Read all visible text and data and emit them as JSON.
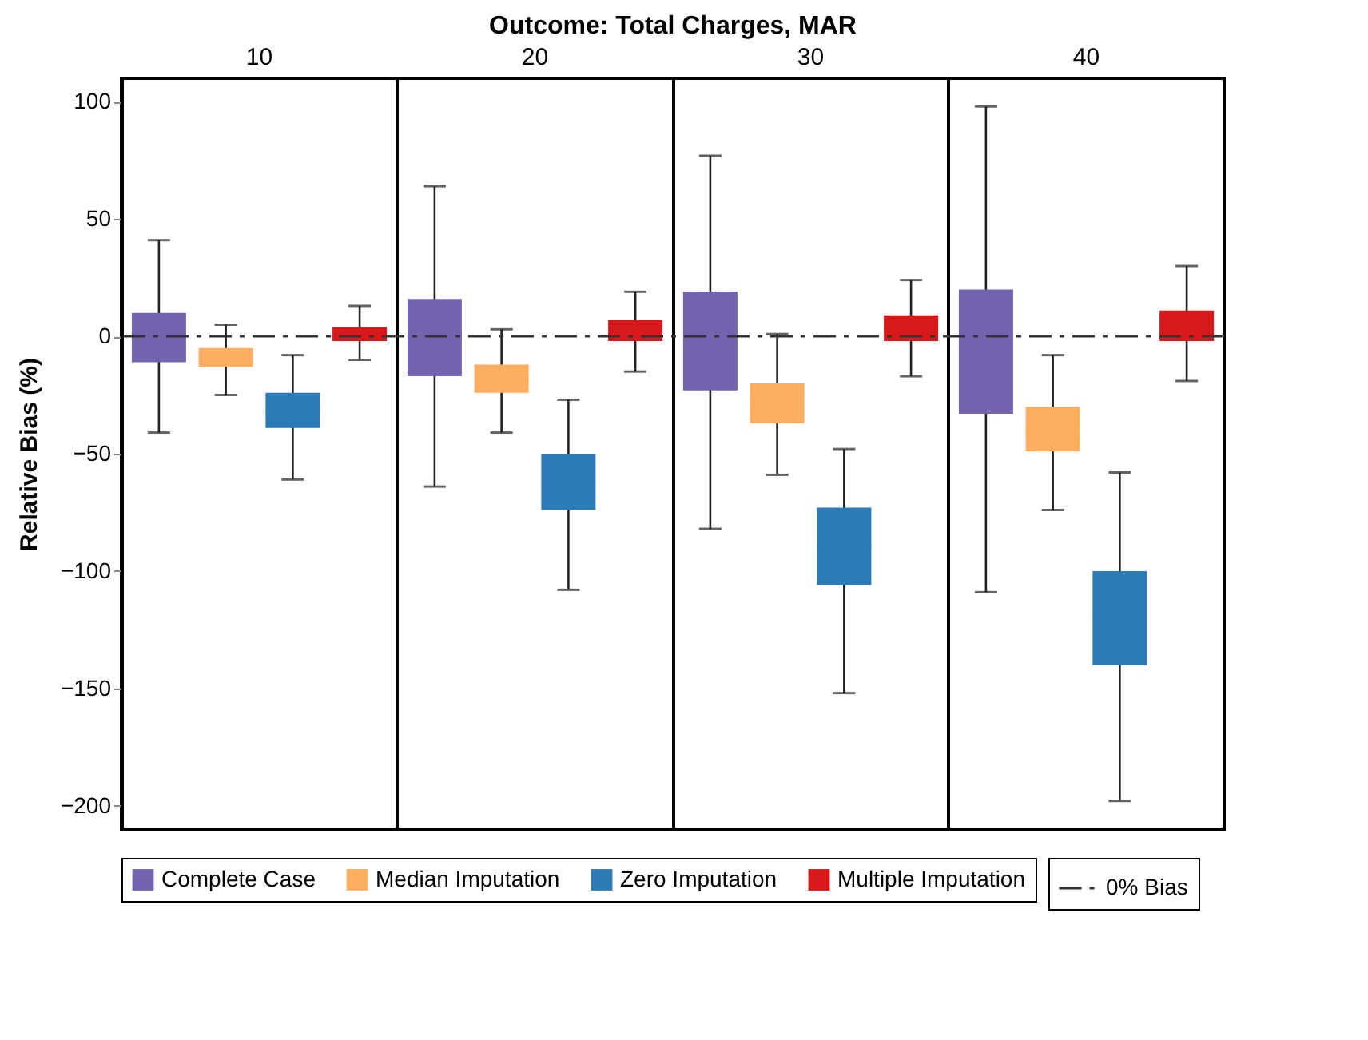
{
  "chart_data": {
    "type": "box",
    "title": "Outcome: Total Charges, MAR",
    "ylabel": "Relative Bias (%)",
    "categories": [
      "10",
      "20",
      "30",
      "40"
    ],
    "ylim": [
      -210,
      110
    ],
    "yticks": [
      -200,
      -150,
      -100,
      -50,
      0,
      50,
      100
    ],
    "grid": false,
    "legend": "bottom",
    "series": [
      {
        "name": "Complete Case",
        "color": "#7463ae",
        "boxes": [
          {
            "low": -41,
            "q1": -11,
            "median": 0,
            "q3": 10,
            "high": 41
          },
          {
            "low": -64,
            "q1": -17,
            "median": 0,
            "q3": 16,
            "high": 64
          },
          {
            "low": -82,
            "q1": -23,
            "median": -2,
            "q3": 19,
            "high": 77
          },
          {
            "low": -109,
            "q1": -33,
            "median": -6,
            "q3": 20,
            "high": 98
          }
        ]
      },
      {
        "name": "Median Imputation",
        "color": "#fdae61",
        "boxes": [
          {
            "low": -25,
            "q1": -13,
            "median": -9,
            "q3": -5,
            "high": 5
          },
          {
            "low": -41,
            "q1": -24,
            "median": -18,
            "q3": -12,
            "high": 3
          },
          {
            "low": -59,
            "q1": -37,
            "median": -28,
            "q3": -20,
            "high": 1
          },
          {
            "low": -74,
            "q1": -49,
            "median": -40,
            "q3": -30,
            "high": -8
          }
        ]
      },
      {
        "name": "Zero Imputation",
        "color": "#2c7bb6",
        "boxes": [
          {
            "low": -61,
            "q1": -39,
            "median": -31,
            "q3": -24,
            "high": -8
          },
          {
            "low": -108,
            "q1": -74,
            "median": -62,
            "q3": -50,
            "high": -27
          },
          {
            "low": -152,
            "q1": -106,
            "median": -90,
            "q3": -73,
            "high": -48
          },
          {
            "low": -198,
            "q1": -140,
            "median": -120,
            "q3": -100,
            "high": -58
          }
        ]
      },
      {
        "name": "Multiple Imputation",
        "color": "#d7191c",
        "boxes": [
          {
            "low": -10,
            "q1": -2,
            "median": 1,
            "q3": 4,
            "high": 13
          },
          {
            "low": -15,
            "q1": -2,
            "median": 2,
            "q3": 7,
            "high": 19
          },
          {
            "low": -17,
            "q1": -2,
            "median": 3,
            "q3": 9,
            "high": 24
          },
          {
            "low": -19,
            "q1": -2,
            "median": 4,
            "q3": 11,
            "high": 30
          }
        ]
      }
    ],
    "ref_lines": [
      {
        "axis": "y",
        "value": 0,
        "label": "0% Bias",
        "color": "#333333",
        "line_style": "dashed"
      }
    ]
  }
}
